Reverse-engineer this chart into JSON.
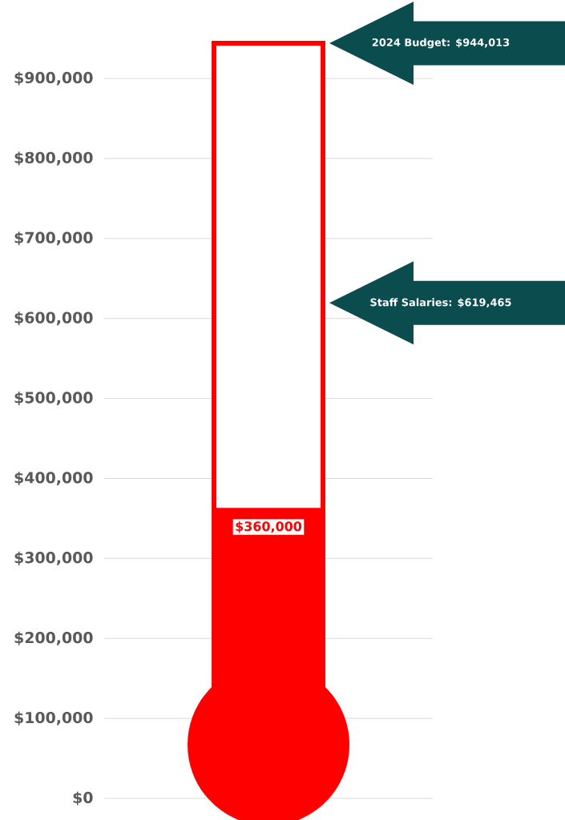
{
  "chart_data": {
    "type": "bar",
    "stacked": true,
    "categories": [
      null
    ],
    "series": [
      {
        "color": "#ff0000",
        "values": [
          360000
        ],
        "value_labels": [
          "$360,000"
        ]
      },
      {
        "color": "#ffffff",
        "values": [
          584013
        ]
      }
    ],
    "ylim": [
      0,
      944013
    ],
    "yticks": [
      {
        "value": 0,
        "label": "$0"
      },
      {
        "value": 100000,
        "label": "$100,000"
      },
      {
        "value": 200000,
        "label": "$200,000"
      },
      {
        "value": 300000,
        "label": "$300,000"
      },
      {
        "value": 400000,
        "label": "$400,000"
      },
      {
        "value": 500000,
        "label": "$500,000"
      },
      {
        "value": 600000,
        "label": "$600,000"
      },
      {
        "value": 700000,
        "label": "$700,000"
      },
      {
        "value": 800000,
        "label": "$800,000"
      },
      {
        "value": 900000,
        "label": "$900,000"
      }
    ],
    "grid": "y",
    "ref_lines": [
      {
        "axis": "y",
        "value": 944013,
        "label": "2024 Budget: $944,013",
        "color": "#0b4d4f"
      },
      {
        "axis": "y",
        "value": 619465,
        "label": "Staff Salaries: $619,465",
        "color": "#0b4d4f"
      }
    ]
  }
}
